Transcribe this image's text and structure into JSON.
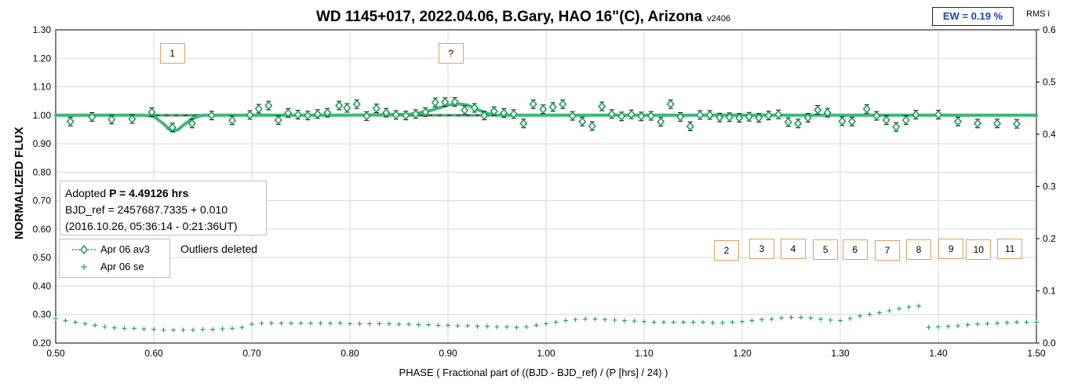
{
  "title": "WD 1145+017, 2022.04.06, B.Gary, HAO 16\"(C), Arizona",
  "version": "v2406",
  "ew_label": "EW = 0.19 %",
  "rms_label": "RMS i",
  "info": {
    "line1_prefix": "Adopted ",
    "line1_bold": "P = 4.49126 hrs",
    "line2": "BJD_ref = 2457687.7335 + 0.010",
    "line3": "(2016.10.26, 05:36:14 - 0:21:36UT)"
  },
  "outliers_note": "Outliers deleted",
  "markers": [
    {
      "label": "1",
      "phase": 0.619,
      "flux": 1.218
    },
    {
      "label": "?",
      "phase": 0.903,
      "flux": 1.218
    },
    {
      "label": "2",
      "phase": 1.184,
      "flux": 0.525
    },
    {
      "label": "3",
      "phase": 1.22,
      "flux": 0.531
    },
    {
      "label": "4",
      "phase": 1.252,
      "flux": 0.53
    },
    {
      "label": "5",
      "phase": 1.285,
      "flux": 0.528
    },
    {
      "label": "6",
      "phase": 1.315,
      "flux": 0.528
    },
    {
      "label": "7",
      "phase": 1.348,
      "flux": 0.525
    },
    {
      "label": "8",
      "phase": 1.38,
      "flux": 0.527
    },
    {
      "label": "9",
      "phase": 1.413,
      "flux": 0.53
    },
    {
      "label": "10",
      "phase": 1.441,
      "flux": 0.528
    },
    {
      "label": "11",
      "phase": 1.473,
      "flux": 0.53
    }
  ],
  "colors": {
    "series": "#1e9e5a",
    "model": "#3cb878",
    "baseline_dash": "#8c8c8c",
    "baseline_green": "#0a7a3a",
    "grid": "#d9d9d9",
    "marker_border": "#e0a060"
  },
  "chart_data": {
    "type": "scatter",
    "title": "WD 1145+017, 2022.04.06, B.Gary, HAO 16\"(C), Arizona",
    "xlabel": "PHASE ( Fractional part of ((BJD - BJD_ref) / (P [hrs] / 24) )",
    "ylabel": "NORMALIZED FLUX",
    "y2label": "RMS i",
    "xlim": [
      0.5,
      1.5
    ],
    "ylim": [
      0.2,
      1.3
    ],
    "y2lim": [
      0.0,
      0.6
    ],
    "grid": true,
    "legend_position": "left",
    "x_ticks": [
      "0.50",
      "0.60",
      "0.70",
      "0.80",
      "0.90",
      "1.00",
      "1.10",
      "1.20",
      "1.30",
      "1.40",
      "1.50"
    ],
    "y_ticks": [
      "0.20",
      "0.30",
      "0.40",
      "0.50",
      "0.60",
      "0.70",
      "0.80",
      "0.90",
      "1.00",
      "1.10",
      "1.20",
      "1.30"
    ],
    "y2_ticks": [
      "0.0",
      "0.1",
      "0.2",
      "0.3",
      "0.4",
      "0.5",
      "0.6"
    ],
    "series": [
      {
        "name": "Apr 06 av3",
        "style": "open-diamond-with-errorbars",
        "error": 0.015,
        "x": [
          0.515,
          0.537,
          0.557,
          0.578,
          0.598,
          0.619,
          0.639,
          0.659,
          0.68,
          0.698,
          0.707,
          0.717,
          0.727,
          0.737,
          0.747,
          0.757,
          0.767,
          0.777,
          0.789,
          0.797,
          0.807,
          0.817,
          0.827,
          0.837,
          0.847,
          0.857,
          0.867,
          0.877,
          0.887,
          0.897,
          0.907,
          0.917,
          0.927,
          0.937,
          0.947,
          0.957,
          0.967,
          0.977,
          0.987,
          0.997,
          1.007,
          1.017,
          1.027,
          1.037,
          1.047,
          1.057,
          1.067,
          1.077,
          1.087,
          1.097,
          1.107,
          1.117,
          1.127,
          1.137,
          1.147,
          1.157,
          1.167,
          1.177,
          1.187,
          1.197,
          1.207,
          1.217,
          1.227,
          1.237,
          1.247,
          1.257,
          1.267,
          1.277,
          1.287,
          1.302,
          1.312,
          1.327,
          1.337,
          1.347,
          1.357,
          1.367,
          1.377,
          1.4,
          1.42,
          1.44,
          1.46,
          1.48
        ],
        "y": [
          0.978,
          0.994,
          0.985,
          0.987,
          1.011,
          0.957,
          0.971,
          0.999,
          0.982,
          1.001,
          1.023,
          1.034,
          0.983,
          1.008,
          1.002,
          0.999,
          1.004,
          1.009,
          1.034,
          1.026,
          1.039,
          0.997,
          1.024,
          1.009,
          1.001,
          0.999,
          1.004,
          1.011,
          1.045,
          1.046,
          1.047,
          1.018,
          1.026,
          0.999,
          1.014,
          1.008,
          1.004,
          0.971,
          1.039,
          1.021,
          1.029,
          1.039,
          0.998,
          0.978,
          0.962,
          1.031,
          1.004,
          0.996,
          1.003,
          0.996,
          0.998,
          0.977,
          1.039,
          0.994,
          0.961,
          1.001,
          1.001,
          0.992,
          0.993,
          0.991,
          0.995,
          0.991,
          0.999,
          1.003,
          0.976,
          0.971,
          0.991,
          1.019,
          1.009,
          0.979,
          0.978,
          1.022,
          0.998,
          0.983,
          0.959,
          0.983,
          1.002,
          1.002,
          0.978,
          0.971,
          0.971,
          0.97
        ]
      },
      {
        "name": "Apr 06 se",
        "style": "plus",
        "axis": "y2",
        "x": [
          0.5,
          0.51,
          0.52,
          0.53,
          0.54,
          0.55,
          0.56,
          0.57,
          0.58,
          0.59,
          0.6,
          0.61,
          0.62,
          0.63,
          0.64,
          0.65,
          0.66,
          0.67,
          0.68,
          0.69,
          0.7,
          0.71,
          0.72,
          0.73,
          0.74,
          0.75,
          0.76,
          0.77,
          0.78,
          0.79,
          0.8,
          0.81,
          0.82,
          0.83,
          0.84,
          0.85,
          0.86,
          0.87,
          0.88,
          0.89,
          0.9,
          0.91,
          0.92,
          0.93,
          0.94,
          0.95,
          0.96,
          0.97,
          0.98,
          0.99,
          1.0,
          1.01,
          1.02,
          1.03,
          1.04,
          1.05,
          1.06,
          1.07,
          1.08,
          1.09,
          1.1,
          1.11,
          1.12,
          1.13,
          1.14,
          1.15,
          1.16,
          1.17,
          1.18,
          1.19,
          1.2,
          1.21,
          1.22,
          1.23,
          1.24,
          1.25,
          1.26,
          1.27,
          1.28,
          1.29,
          1.3,
          1.31,
          1.32,
          1.33,
          1.34,
          1.35,
          1.36,
          1.37,
          1.38,
          1.39,
          1.4,
          1.41,
          1.42,
          1.43,
          1.44,
          1.45,
          1.46,
          1.47,
          1.48,
          1.49,
          1.5
        ],
        "y": [
          0.047,
          0.043,
          0.04,
          0.037,
          0.034,
          0.031,
          0.029,
          0.028,
          0.028,
          0.027,
          0.026,
          0.025,
          0.025,
          0.025,
          0.025,
          0.026,
          0.026,
          0.027,
          0.028,
          0.03,
          0.036,
          0.038,
          0.038,
          0.038,
          0.038,
          0.038,
          0.038,
          0.038,
          0.038,
          0.038,
          0.037,
          0.037,
          0.037,
          0.037,
          0.037,
          0.036,
          0.036,
          0.035,
          0.035,
          0.034,
          0.034,
          0.033,
          0.033,
          0.032,
          0.032,
          0.031,
          0.031,
          0.03,
          0.031,
          0.034,
          0.037,
          0.04,
          0.043,
          0.045,
          0.046,
          0.046,
          0.045,
          0.044,
          0.043,
          0.042,
          0.041,
          0.04,
          0.04,
          0.04,
          0.04,
          0.04,
          0.04,
          0.039,
          0.039,
          0.04,
          0.041,
          0.043,
          0.045,
          0.046,
          0.048,
          0.049,
          0.049,
          0.048,
          0.046,
          0.044,
          0.043,
          0.047,
          0.052,
          0.055,
          0.058,
          0.062,
          0.066,
          0.069,
          0.071,
          0.03,
          0.031,
          0.032,
          0.033,
          0.035,
          0.036,
          0.037,
          0.038,
          0.039,
          0.04,
          0.04,
          0.04
        ]
      },
      {
        "name": "",
        "style": "model-line",
        "x": [
          0.5,
          0.59,
          0.6,
          0.61,
          0.615,
          0.62,
          0.625,
          0.63,
          0.64,
          0.65,
          0.7,
          0.8,
          0.86,
          0.87,
          0.88,
          0.89,
          0.9,
          0.91,
          0.92,
          0.93,
          0.94,
          0.95,
          1.0,
          1.5
        ],
        "y": [
          1.0,
          1.0,
          0.996,
          0.97,
          0.952,
          0.944,
          0.95,
          0.965,
          0.99,
          1.0,
          1.0,
          1.0,
          1.003,
          1.008,
          1.015,
          1.025,
          1.036,
          1.04,
          1.036,
          1.02,
          1.006,
          1.0,
          1.0,
          1.0
        ]
      }
    ],
    "baseline": 1.0
  }
}
